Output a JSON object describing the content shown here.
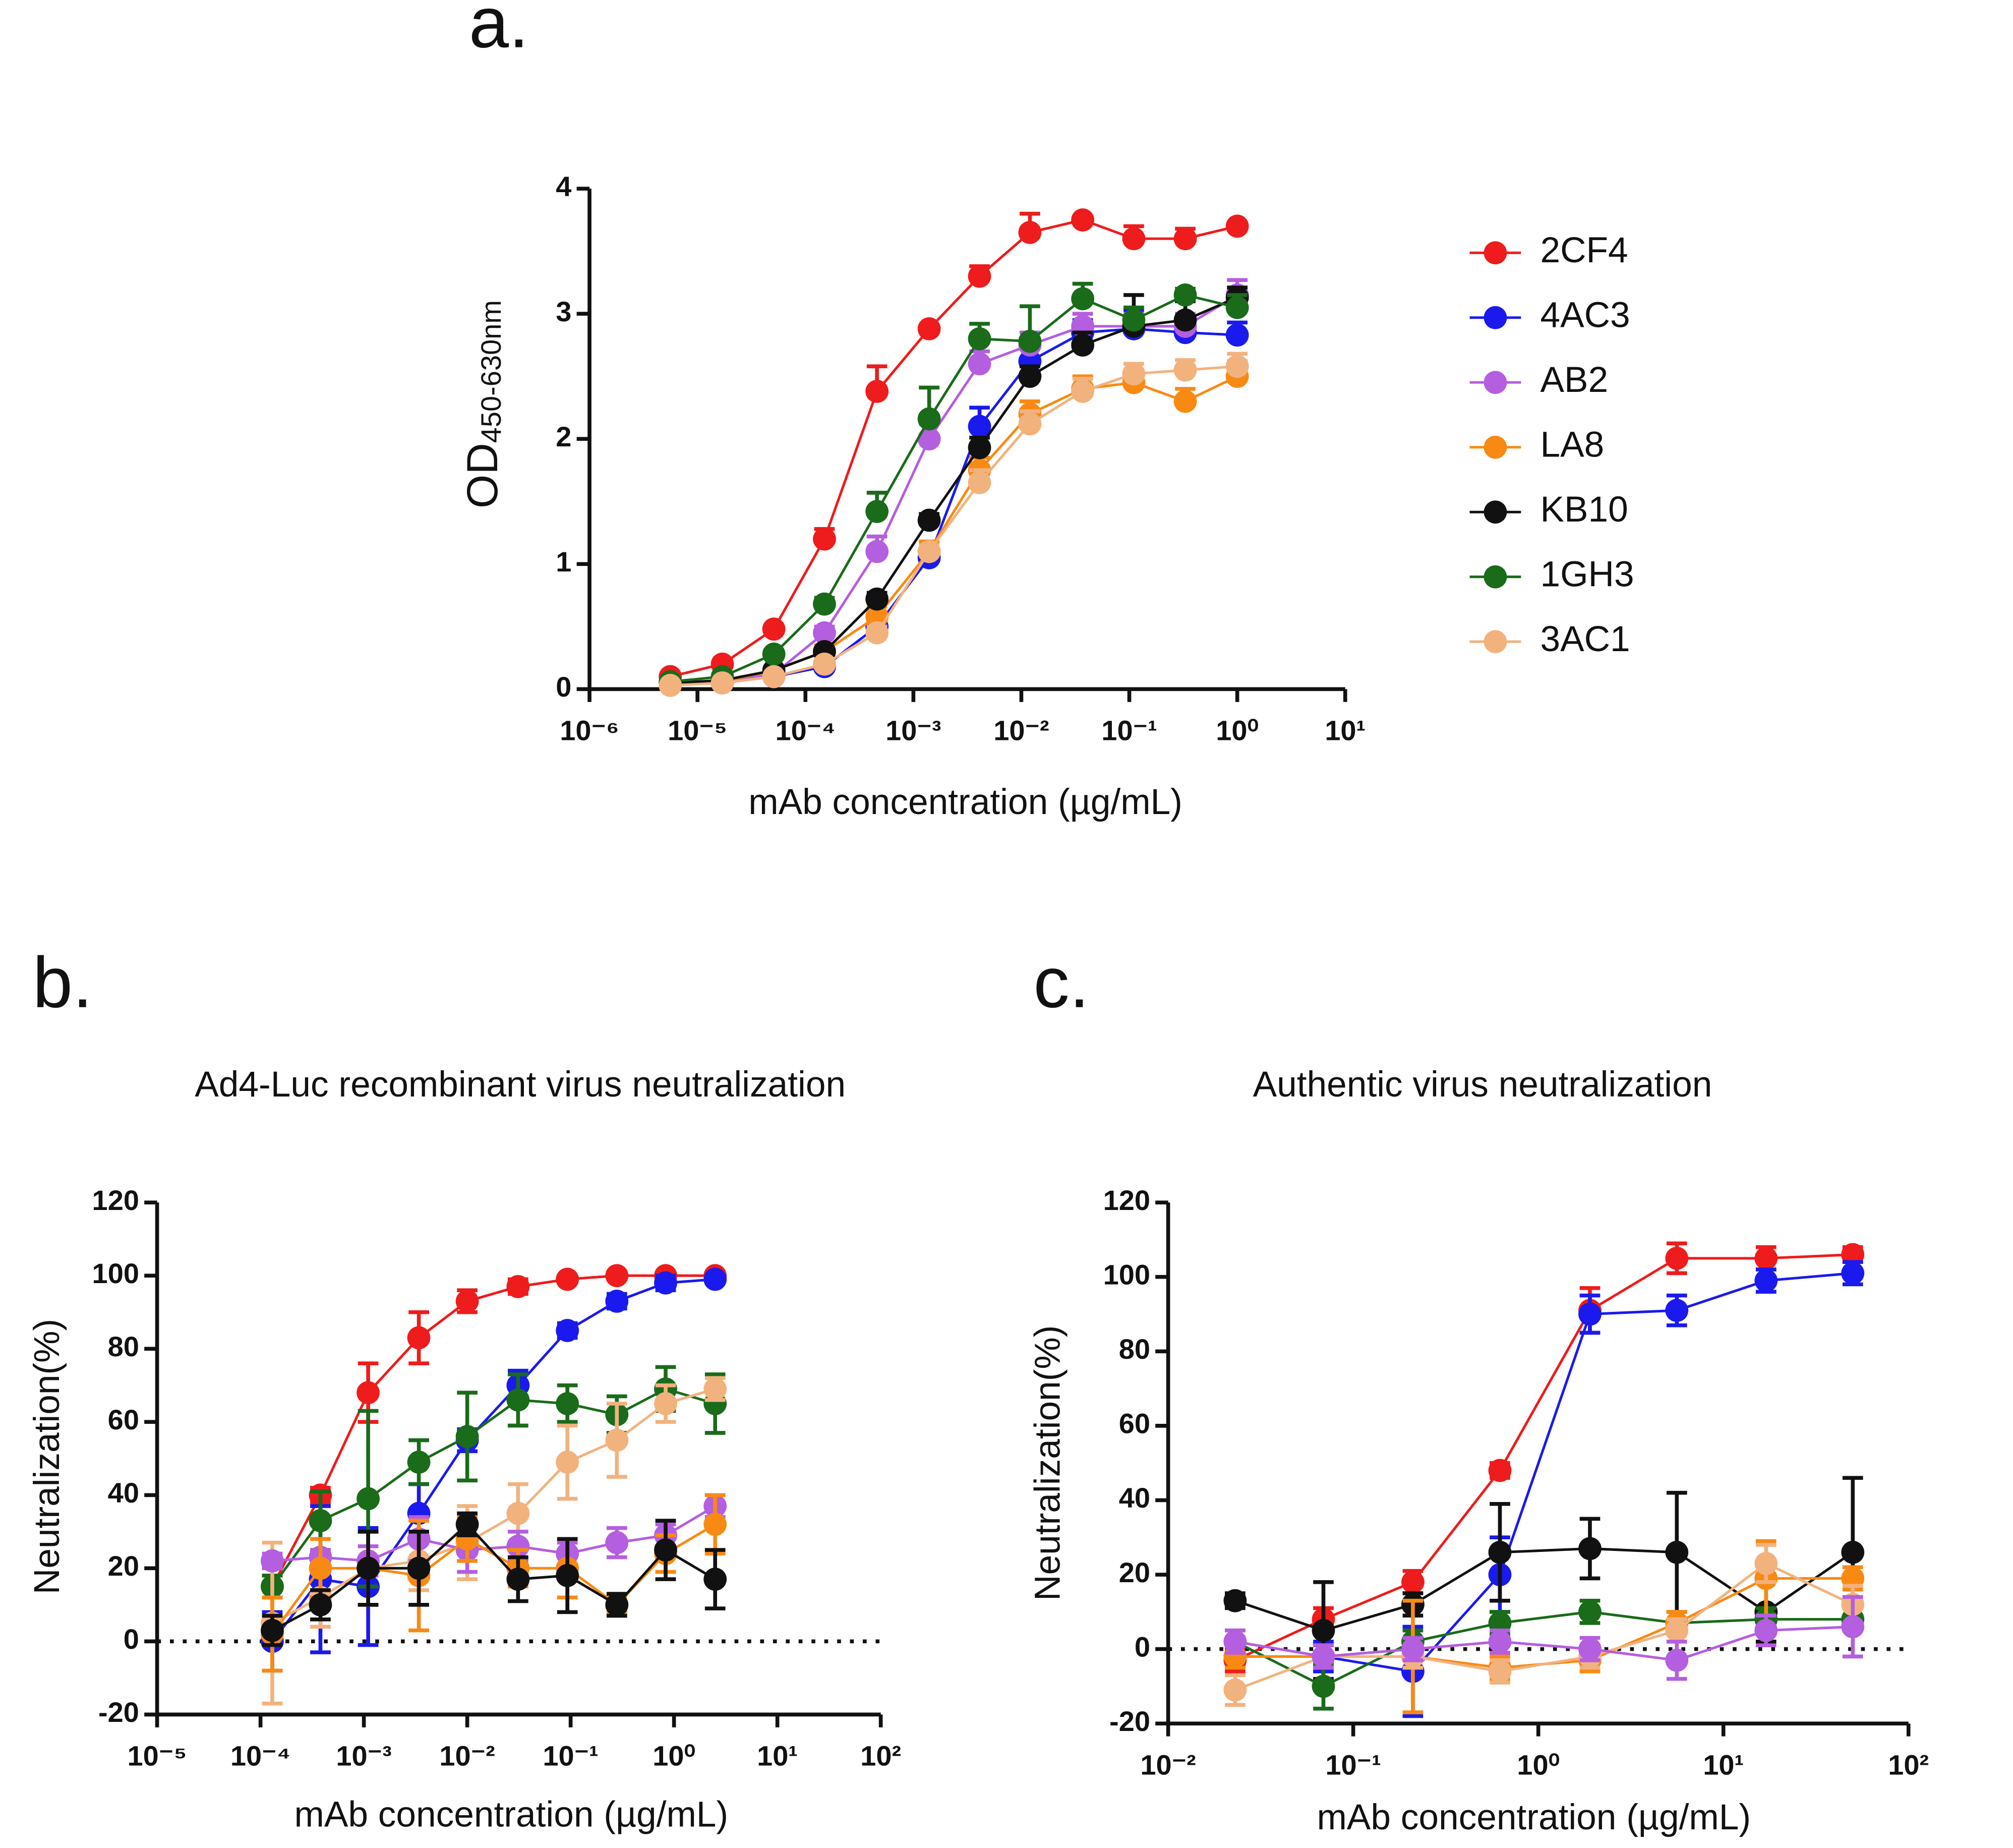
{
  "chart_data": [
    {
      "type": "line",
      "panel": "a.",
      "xlabel": "mAb concentration (µg/mL)",
      "ylabel": "OD",
      "ylabel_sub": "450-630nm",
      "xscale": "log",
      "xlim": [
        1e-06,
        10
      ],
      "ylim": [
        0,
        4
      ],
      "xticks": [
        {
          "value": 1e-06,
          "label": "10⁻⁶"
        },
        {
          "value": 1e-05,
          "label": "10⁻⁵"
        },
        {
          "value": 0.0001,
          "label": "10⁻⁴"
        },
        {
          "value": 0.001,
          "label": "10⁻³"
        },
        {
          "value": 0.01,
          "label": "10⁻²"
        },
        {
          "value": 0.1,
          "label": "10⁻¹"
        },
        {
          "value": 1,
          "label": "10⁰"
        },
        {
          "value": 10,
          "label": "10¹"
        }
      ],
      "yticks": [
        0,
        1,
        2,
        3,
        4
      ],
      "x": [
        5.6e-06,
        1.7e-05,
        5.1e-05,
        0.00015,
        0.00046,
        0.0014,
        0.0041,
        0.012,
        0.037,
        0.11,
        0.33,
        1
      ],
      "series": [
        {
          "name": "2CF4",
          "color": "#ee1c1c",
          "values": [
            0.1,
            0.2,
            0.48,
            1.2,
            2.38,
            2.88,
            3.3,
            3.65,
            3.75,
            3.6,
            3.6,
            3.7
          ],
          "errors": [
            0.02,
            0.02,
            0.03,
            0.08,
            0.2,
            0.03,
            0.08,
            0.15,
            0.02,
            0.1,
            0.08,
            0.02
          ]
        },
        {
          "name": "4AC3",
          "color": "#1a1aee",
          "values": [
            0.05,
            0.05,
            0.1,
            0.18,
            0.5,
            1.05,
            2.1,
            2.62,
            2.85,
            2.88,
            2.85,
            2.83
          ],
          "errors": [
            0.02,
            0.02,
            0.02,
            0.03,
            0.05,
            0.05,
            0.15,
            0.15,
            0.1,
            0.15,
            0.1,
            0.1
          ]
        },
        {
          "name": "AB2",
          "color": "#b45ee0",
          "values": [
            0.04,
            0.06,
            0.12,
            0.45,
            1.1,
            2.0,
            2.6,
            2.75,
            2.9,
            2.9,
            2.9,
            3.15
          ],
          "errors": [
            0.02,
            0.02,
            0.03,
            0.05,
            0.12,
            0.12,
            0.1,
            0.1,
            0.1,
            0.1,
            0.1,
            0.12
          ]
        },
        {
          "name": "LA8",
          "color": "#f88a14",
          "values": [
            0.04,
            0.06,
            0.15,
            0.3,
            0.58,
            1.1,
            1.75,
            2.2,
            2.4,
            2.45,
            2.3,
            2.5
          ],
          "errors": [
            0.02,
            0.02,
            0.03,
            0.05,
            0.08,
            0.08,
            0.1,
            0.1,
            0.1,
            0.1,
            0.1,
            0.12
          ]
        },
        {
          "name": "KB10",
          "color": "#111111",
          "values": [
            0.05,
            0.07,
            0.15,
            0.3,
            0.72,
            1.35,
            1.93,
            2.5,
            2.75,
            2.9,
            2.95,
            3.13
          ],
          "errors": [
            0.02,
            0.02,
            0.03,
            0.03,
            0.05,
            0.05,
            0.08,
            0.08,
            0.1,
            0.25,
            0.15,
            0.08
          ]
        },
        {
          "name": "1GH3",
          "color": "#1a6b1a",
          "values": [
            0.06,
            0.1,
            0.28,
            0.68,
            1.42,
            2.16,
            2.8,
            2.78,
            3.12,
            2.95,
            3.15,
            3.05
          ],
          "errors": [
            0.02,
            0.02,
            0.03,
            0.05,
            0.15,
            0.25,
            0.12,
            0.28,
            0.12,
            0.1,
            0.05,
            0.1
          ]
        },
        {
          "name": "3AC1",
          "color": "#f2b27e",
          "values": [
            0.03,
            0.05,
            0.1,
            0.2,
            0.45,
            1.1,
            1.65,
            2.12,
            2.38,
            2.52,
            2.55,
            2.58
          ],
          "errors": [
            0.02,
            0.02,
            0.02,
            0.03,
            0.05,
            0.05,
            0.1,
            0.1,
            0.1,
            0.08,
            0.08,
            0.1
          ]
        }
      ]
    },
    {
      "type": "line",
      "panel": "b.",
      "title": "Ad4-Luc recombinant virus neutralization",
      "xlabel": "mAb concentration (µg/mL)",
      "ylabel": "Neutralization(%)",
      "xscale": "log",
      "xlim": [
        1e-05,
        100
      ],
      "ylim": [
        -20,
        120
      ],
      "zero_line": true,
      "xticks": [
        {
          "value": 1e-05,
          "label": "10⁻⁵"
        },
        {
          "value": 0.0001,
          "label": "10⁻⁴"
        },
        {
          "value": 0.001,
          "label": "10⁻³"
        },
        {
          "value": 0.01,
          "label": "10⁻²"
        },
        {
          "value": 0.1,
          "label": "10⁻¹"
        },
        {
          "value": 1,
          "label": "10⁰"
        },
        {
          "value": 10,
          "label": "10¹"
        },
        {
          "value": 100,
          "label": "10²"
        }
      ],
      "yticks": [
        -20,
        0,
        20,
        40,
        60,
        80,
        100,
        120
      ],
      "x": [
        0.00013,
        0.00038,
        0.0011,
        0.0034,
        0.01,
        0.031,
        0.093,
        0.28,
        0.83,
        2.5
      ],
      "series": [
        {
          "color": "#ee1c1c",
          "values": [
            15,
            40,
            68,
            83,
            93,
            97,
            99,
            100,
            100,
            100
          ],
          "errors": [
            3,
            2,
            8,
            7,
            3,
            2,
            1,
            1,
            1,
            1
          ]
        },
        {
          "color": "#1a1aee",
          "values": [
            0,
            17,
            15,
            35,
            55,
            70,
            85,
            93,
            98,
            99
          ],
          "errors": [
            8,
            20,
            16,
            8,
            3,
            4,
            2,
            2,
            2,
            1
          ]
        },
        {
          "color": "#1a6b1a",
          "values": [
            15,
            33,
            39,
            49,
            56,
            66,
            65,
            62,
            69,
            65
          ],
          "errors": [
            3,
            8,
            24,
            6,
            12,
            7,
            5,
            5,
            6,
            8
          ]
        },
        {
          "color": "#f2b27e",
          "values": [
            5,
            12,
            20,
            22,
            27,
            35,
            49,
            55,
            65,
            69
          ],
          "errors": [
            22,
            8,
            10,
            8,
            10,
            8,
            10,
            10,
            5,
            3
          ]
        },
        {
          "color": "#b45ee0",
          "values": [
            22,
            23,
            22,
            28,
            25,
            26,
            24,
            27,
            29,
            37
          ],
          "errors": [
            2,
            2,
            4,
            6,
            6,
            4,
            3,
            4,
            3,
            3
          ]
        },
        {
          "color": "#f88a14",
          "values": [
            2,
            20,
            20,
            18,
            28,
            20,
            20,
            10,
            24,
            32
          ],
          "errors": [
            10,
            8,
            10,
            15,
            6,
            5,
            8,
            2,
            5,
            8
          ]
        },
        {
          "color": "#111111",
          "values": [
            3,
            10,
            20,
            20,
            32,
            17,
            18,
            10,
            25,
            17
          ],
          "errors": [
            4,
            4,
            10,
            10,
            3,
            6,
            10,
            3,
            8,
            8
          ]
        }
      ]
    },
    {
      "type": "line",
      "panel": "c.",
      "title": "Authentic virus neutralization",
      "xlabel": "mAb concentration (µg/mL)",
      "ylabel": "Neutralization(%)",
      "xscale": "log",
      "xlim": [
        0.01,
        100
      ],
      "ylim": [
        -20,
        120
      ],
      "zero_line": true,
      "xticks": [
        {
          "value": 0.01,
          "label": "10⁻²"
        },
        {
          "value": 0.1,
          "label": "10⁻¹"
        },
        {
          "value": 1,
          "label": "10⁰"
        },
        {
          "value": 10,
          "label": "10¹"
        },
        {
          "value": 100,
          "label": "10²"
        }
      ],
      "yticks": [
        -20,
        0,
        20,
        40,
        60,
        80,
        100,
        120
      ],
      "x": [
        0.023,
        0.069,
        0.21,
        0.62,
        1.9,
        5.6,
        17,
        50
      ],
      "series": [
        {
          "color": "#ee1c1c",
          "values": [
            -3,
            8,
            18,
            48,
            91,
            105,
            105,
            106
          ],
          "errors": [
            3,
            3,
            3,
            2,
            6,
            4,
            3,
            2
          ]
        },
        {
          "color": "#1a1aee",
          "values": [
            -2,
            -2,
            -6,
            20,
            90,
            91,
            99,
            101
          ],
          "errors": [
            3,
            4,
            12,
            10,
            5,
            4,
            3,
            3
          ]
        },
        {
          "color": "#111111",
          "values": [
            13,
            5,
            12,
            26,
            27,
            26,
            10,
            26
          ],
          "errors": [
            2,
            13,
            3,
            13,
            8,
            16,
            8,
            20
          ]
        },
        {
          "color": "#1a6b1a",
          "values": [
            2,
            -10,
            2,
            7,
            10,
            7,
            8,
            8
          ],
          "errors": [
            3,
            6,
            3,
            3,
            3,
            3,
            3,
            3
          ]
        },
        {
          "color": "#f88a14",
          "values": [
            -2,
            -2,
            -2,
            -5,
            -3,
            7,
            19,
            19
          ],
          "errors": [
            3,
            3,
            15,
            3,
            3,
            3,
            10,
            3
          ]
        },
        {
          "color": "#f2b27e",
          "values": [
            -11,
            -2,
            -2,
            -6,
            -2,
            5,
            23,
            12
          ],
          "errors": [
            4,
            3,
            3,
            3,
            3,
            3,
            5,
            5
          ]
        },
        {
          "color": "#b45ee0",
          "values": [
            2,
            -2,
            0,
            2,
            0,
            -3,
            5,
            6
          ],
          "errors": [
            3,
            3,
            3,
            3,
            3,
            5,
            4,
            8
          ]
        }
      ]
    }
  ]
}
